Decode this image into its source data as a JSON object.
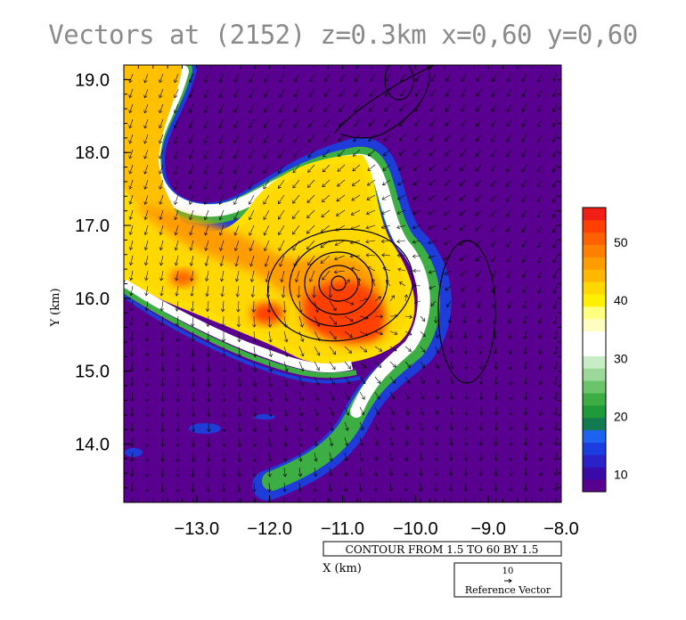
{
  "chart_data": {
    "type": "heatmap",
    "title": "Vectors at (2152) z=0.3km x=0,60 y=0,60",
    "xlabel": "X (km)",
    "ylabel": "Y (km)",
    "xlim": [
      -14.0,
      -8.0
    ],
    "ylim": [
      13.2,
      19.2
    ],
    "x_ticks": [
      "-13.0",
      "-12.0",
      "-11.0",
      "-10.0",
      "-9.0",
      "-8.0"
    ],
    "y_ticks": [
      "19.0",
      "18.0",
      "17.0",
      "16.0",
      "15.0",
      "14.0"
    ],
    "contour_note": "CONTOUR FROM 1.5 TO 60 BY 1.5",
    "reference_vector": {
      "value": "10",
      "label": "Reference Vector"
    },
    "colorbar": {
      "range": [
        7,
        56
      ],
      "tick_labels": [
        "50",
        "40",
        "30",
        "20",
        "10"
      ],
      "colors": [
        "#5a0090",
        "#3a0aa8",
        "#2a22c8",
        "#1c3ee0",
        "#1e62f0",
        "#117a50",
        "#1f9a3a",
        "#3cae44",
        "#6cc46a",
        "#9cd89a",
        "#c8ecc6",
        "#ffffff",
        "#ffffff",
        "#fffec0",
        "#ffff80",
        "#fff000",
        "#ffd800",
        "#ffb800",
        "#ff9c00",
        "#ff8000",
        "#ff6000",
        "#ff4000",
        "#f01e14"
      ]
    }
  }
}
